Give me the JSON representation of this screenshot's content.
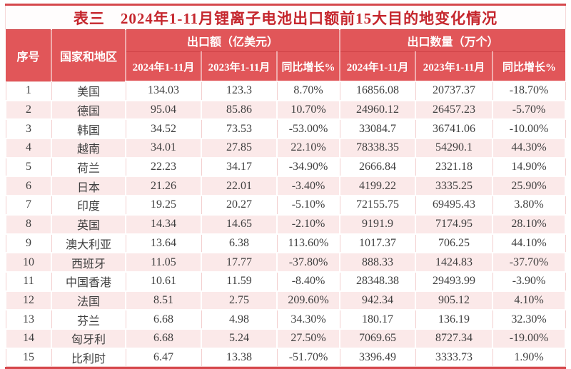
{
  "title": {
    "label": "表三",
    "text": "2024年1-11月锂离子电池出口额前15大目的地变化情况"
  },
  "colors": {
    "frame_red": "#d6494d",
    "header_bg": "#e15659",
    "header_text": "#ffffff",
    "title_text": "#c5262d",
    "row_alt_bg": "#fbe9e9",
    "grid_line": "#f3cfcf",
    "body_text": "#3f3f3f"
  },
  "chart_data": {
    "type": "table",
    "title": "表三 2024年1-11月锂离子电池出口额前15大目的地变化情况",
    "header": {
      "rank": "序号",
      "country": "国家和地区",
      "group_value": "出口额（亿美元）",
      "group_qty": "出口数量（万个）",
      "sub": [
        "2024年1-11月",
        "2023年1-11月",
        "同比增长%",
        "2024年1-11月",
        "2023年1-11月",
        "同比增长%"
      ]
    },
    "rows": [
      [
        "1",
        "美国",
        "134.03",
        "123.3",
        "8.70%",
        "16856.08",
        "20737.37",
        "-18.70%"
      ],
      [
        "2",
        "德国",
        "95.04",
        "85.86",
        "10.70%",
        "24960.12",
        "26457.23",
        "-5.70%"
      ],
      [
        "3",
        "韩国",
        "34.52",
        "73.53",
        "-53.00%",
        "33084.7",
        "36741.06",
        "-10.00%"
      ],
      [
        "4",
        "越南",
        "34.01",
        "27.85",
        "22.10%",
        "78338.35",
        "54290.1",
        "44.30%"
      ],
      [
        "5",
        "荷兰",
        "22.23",
        "34.17",
        "-34.90%",
        "2666.84",
        "2321.18",
        "14.90%"
      ],
      [
        "6",
        "日本",
        "21.26",
        "22.01",
        "-3.40%",
        "4199.22",
        "3335.25",
        "25.90%"
      ],
      [
        "7",
        "印度",
        "19.25",
        "20.27",
        "-5.10%",
        "72155.75",
        "69495.43",
        "3.80%"
      ],
      [
        "8",
        "英国",
        "14.34",
        "14.65",
        "-2.10%",
        "9191.9",
        "7174.95",
        "28.10%"
      ],
      [
        "9",
        "澳大利亚",
        "13.64",
        "6.38",
        "113.60%",
        "1017.37",
        "706.25",
        "44.10%"
      ],
      [
        "10",
        "西班牙",
        "11.05",
        "17.77",
        "-37.80%",
        "888.33",
        "1424.83",
        "-37.70%"
      ],
      [
        "11",
        "中国香港",
        "10.61",
        "11.59",
        "-8.40%",
        "28348.38",
        "29493.99",
        "-3.90%"
      ],
      [
        "12",
        "法国",
        "8.51",
        "2.75",
        "209.60%",
        "942.34",
        "905.12",
        "4.10%"
      ],
      [
        "13",
        "芬兰",
        "6.68",
        "4.98",
        "34.30%",
        "180.17",
        "136.19",
        "32.30%"
      ],
      [
        "14",
        "匈牙利",
        "6.68",
        "5.24",
        "27.50%",
        "7069.65",
        "8727.34",
        "-19.00%"
      ],
      [
        "15",
        "比利时",
        "6.47",
        "13.38",
        "-51.70%",
        "3396.49",
        "3333.73",
        "1.90%"
      ]
    ]
  }
}
